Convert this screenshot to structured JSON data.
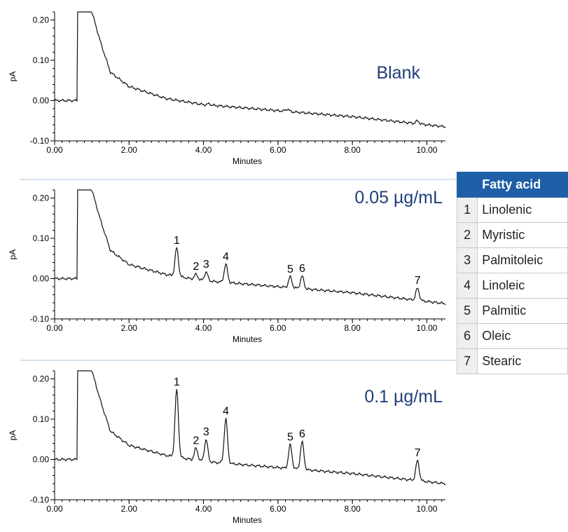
{
  "chart_data": [
    {
      "type": "line",
      "xlabel": "Minutes",
      "ylabel": "pA",
      "xlim": [
        0,
        10.5
      ],
      "ylim": [
        -0.1,
        0.22
      ],
      "xticks": [
        "0.00",
        "2.00",
        "4.00",
        "6.00",
        "8.00",
        "10.00"
      ],
      "yticks": [
        "-0.10",
        "0.00",
        "0.10",
        "0.20"
      ],
      "annotation": "Blank",
      "solvent_peak_time": 0.63,
      "baseline": [
        [
          0,
          0.0
        ],
        [
          0.6,
          0.0
        ],
        [
          1.0,
          0.22
        ],
        [
          1.25,
          0.14
        ],
        [
          1.5,
          0.07
        ],
        [
          2.0,
          0.035
        ],
        [
          3.0,
          0.005
        ],
        [
          4.0,
          -0.01
        ],
        [
          6.0,
          -0.025
        ],
        [
          8.0,
          -0.04
        ],
        [
          10.5,
          -0.065
        ]
      ],
      "peaks": [
        {
          "label": "",
          "time": 4.15,
          "height": 0.003
        },
        {
          "label": "",
          "time": 6.25,
          "height": 0.006
        },
        {
          "label": "",
          "time": 9.75,
          "height": 0.007
        }
      ]
    },
    {
      "type": "line",
      "xlabel": "Minutes",
      "ylabel": "pA",
      "xlim": [
        0,
        10.5
      ],
      "ylim": [
        -0.1,
        0.22
      ],
      "xticks": [
        "0.00",
        "2.00",
        "4.00",
        "6.00",
        "8.00",
        "10.00"
      ],
      "yticks": [
        "-0.10",
        "0.00",
        "0.10",
        "0.20"
      ],
      "annotation": "0.05 µg/mL",
      "solvent_peak_time": 0.63,
      "baseline": [
        [
          0,
          0.0
        ],
        [
          0.6,
          0.0
        ],
        [
          1.0,
          0.22
        ],
        [
          1.25,
          0.14
        ],
        [
          1.5,
          0.07
        ],
        [
          2.0,
          0.035
        ],
        [
          3.0,
          0.01
        ],
        [
          4.0,
          -0.005
        ],
        [
          6.0,
          -0.02
        ],
        [
          8.0,
          -0.035
        ],
        [
          10.5,
          -0.062
        ]
      ],
      "peaks": [
        {
          "label": "1",
          "time": 3.28,
          "height": 0.07
        },
        {
          "label": "2",
          "time": 3.8,
          "height": 0.013
        },
        {
          "label": "3",
          "time": 4.07,
          "height": 0.022
        },
        {
          "label": "4",
          "time": 4.6,
          "height": 0.045
        },
        {
          "label": "5",
          "time": 6.33,
          "height": 0.027
        },
        {
          "label": "6",
          "time": 6.65,
          "height": 0.031
        },
        {
          "label": "7",
          "time": 9.75,
          "height": 0.03
        }
      ]
    },
    {
      "type": "line",
      "xlabel": "Minutes",
      "ylabel": "pA",
      "xlim": [
        0,
        10.5
      ],
      "ylim": [
        -0.1,
        0.22
      ],
      "xticks": [
        "0.00",
        "2.00",
        "4.00",
        "6.00",
        "8.00",
        "10.00"
      ],
      "yticks": [
        "-0.10",
        "0.00",
        "0.10",
        "0.20"
      ],
      "annotation": "0.1 µg/mL",
      "solvent_peak_time": 0.63,
      "baseline": [
        [
          0,
          0.0
        ],
        [
          0.6,
          0.0
        ],
        [
          1.0,
          0.22
        ],
        [
          1.25,
          0.14
        ],
        [
          1.5,
          0.07
        ],
        [
          2.0,
          0.035
        ],
        [
          3.0,
          0.01
        ],
        [
          4.0,
          -0.005
        ],
        [
          6.0,
          -0.02
        ],
        [
          8.0,
          -0.035
        ],
        [
          10.5,
          -0.06
        ]
      ],
      "peaks": [
        {
          "label": "1",
          "time": 3.28,
          "height": 0.167
        },
        {
          "label": "2",
          "time": 3.8,
          "height": 0.03
        },
        {
          "label": "3",
          "time": 4.07,
          "height": 0.055
        },
        {
          "label": "4",
          "time": 4.6,
          "height": 0.11
        },
        {
          "label": "5",
          "time": 6.33,
          "height": 0.059
        },
        {
          "label": "6",
          "time": 6.65,
          "height": 0.069
        },
        {
          "label": "7",
          "time": 9.75,
          "height": 0.05
        }
      ]
    }
  ],
  "table": {
    "header": "Fatty acid",
    "rows": [
      {
        "num": "1",
        "name": "Linolenic"
      },
      {
        "num": "2",
        "name": "Myristic"
      },
      {
        "num": "3",
        "name": "Palmitoleic"
      },
      {
        "num": "4",
        "name": "Linoleic"
      },
      {
        "num": "5",
        "name": "Palmitic"
      },
      {
        "num": "6",
        "name": "Oleic"
      },
      {
        "num": "7",
        "name": "Stearic"
      }
    ]
  },
  "colors": {
    "trace": "#111111",
    "annotation": "#1f3f7a",
    "separator": "#b9cfe0",
    "header_bg": "#1f5fa8"
  }
}
